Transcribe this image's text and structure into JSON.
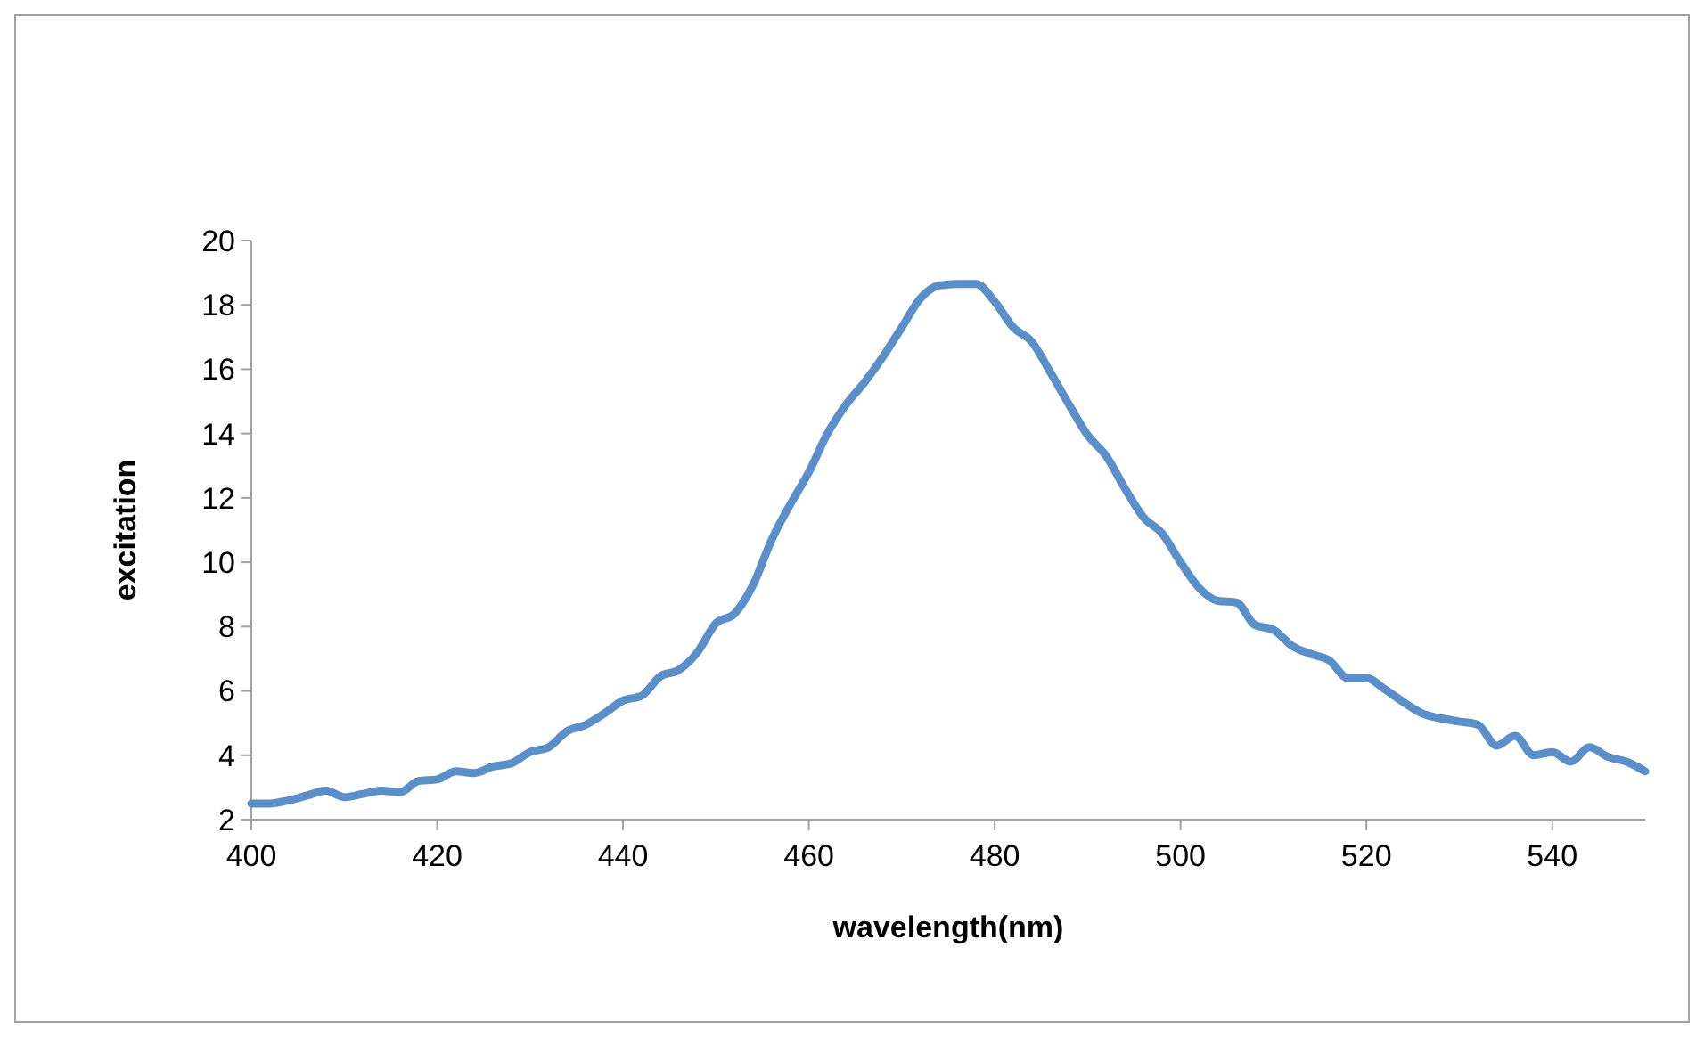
{
  "chart_data": {
    "type": "line",
    "xlabel": "wavelength(nm)",
    "ylabel": "excitation",
    "x": [
      400,
      402,
      404,
      406,
      408,
      410,
      412,
      414,
      416,
      418,
      420,
      422,
      424,
      426,
      428,
      430,
      432,
      434,
      436,
      438,
      440,
      442,
      444,
      446,
      448,
      450,
      452,
      454,
      456,
      458,
      460,
      462,
      464,
      466,
      468,
      470,
      472,
      474,
      476,
      478,
      480,
      482,
      484,
      486,
      488,
      490,
      492,
      494,
      496,
      498,
      500,
      502,
      504,
      506,
      508,
      510,
      512,
      514,
      516,
      518,
      520,
      522,
      524,
      526,
      528,
      530,
      532,
      534,
      536,
      538,
      540,
      542,
      544,
      546,
      548,
      550
    ],
    "series": [
      {
        "color": "#5b8fc9",
        "values": [
          2.5,
          2.5,
          2.6,
          2.75,
          2.9,
          2.7,
          2.8,
          2.9,
          2.85,
          3.2,
          3.25,
          3.5,
          3.45,
          3.65,
          3.75,
          4.1,
          4.25,
          4.75,
          4.95,
          5.3,
          5.7,
          5.85,
          6.45,
          6.65,
          7.2,
          8.1,
          8.4,
          9.3,
          10.7,
          11.8,
          12.8,
          14.0,
          14.9,
          15.6,
          16.4,
          17.3,
          18.2,
          18.6,
          18.65,
          18.65,
          18.1,
          17.3,
          16.85,
          15.9,
          14.9,
          13.95,
          13.3,
          12.3,
          11.4,
          10.9,
          10.0,
          9.2,
          8.8,
          8.75,
          8.05,
          7.9,
          7.4,
          7.15,
          6.95,
          6.4,
          6.4,
          6.05,
          5.65,
          5.3,
          5.15,
          5.05,
          4.95,
          4.3,
          4.6,
          4.0,
          4.1,
          3.8,
          4.25,
          3.95,
          3.8,
          3.5
        ]
      }
    ],
    "xlim": [
      400,
      550
    ],
    "xticks": [
      400,
      420,
      440,
      460,
      480,
      500,
      520,
      540
    ],
    "ylim": [
      2,
      20
    ],
    "yticks": [
      2,
      4,
      6,
      8,
      10,
      12,
      14,
      16,
      18,
      20
    ],
    "grid": false,
    "marker": "none",
    "line_style": "solid"
  }
}
